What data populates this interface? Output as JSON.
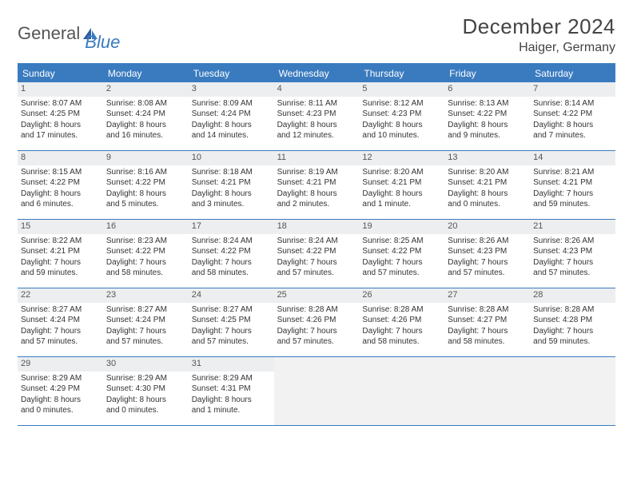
{
  "brand": {
    "part1": "General",
    "part2": "Blue"
  },
  "title": "December 2024",
  "location": "Haiger, Germany",
  "accent_color": "#3a7bbf",
  "daynum_bg": "#eceef0",
  "background": "#ffffff",
  "fontsize_title": 26,
  "fontsize_location": 16,
  "fontsize_dayhead": 12,
  "fontsize_body": 10,
  "weekdays": [
    "Sunday",
    "Monday",
    "Tuesday",
    "Wednesday",
    "Thursday",
    "Friday",
    "Saturday"
  ],
  "days": [
    {
      "n": "1",
      "sunrise": "Sunrise: 8:07 AM",
      "sunset": "Sunset: 4:25 PM",
      "dl1": "Daylight: 8 hours",
      "dl2": "and 17 minutes."
    },
    {
      "n": "2",
      "sunrise": "Sunrise: 8:08 AM",
      "sunset": "Sunset: 4:24 PM",
      "dl1": "Daylight: 8 hours",
      "dl2": "and 16 minutes."
    },
    {
      "n": "3",
      "sunrise": "Sunrise: 8:09 AM",
      "sunset": "Sunset: 4:24 PM",
      "dl1": "Daylight: 8 hours",
      "dl2": "and 14 minutes."
    },
    {
      "n": "4",
      "sunrise": "Sunrise: 8:11 AM",
      "sunset": "Sunset: 4:23 PM",
      "dl1": "Daylight: 8 hours",
      "dl2": "and 12 minutes."
    },
    {
      "n": "5",
      "sunrise": "Sunrise: 8:12 AM",
      "sunset": "Sunset: 4:23 PM",
      "dl1": "Daylight: 8 hours",
      "dl2": "and 10 minutes."
    },
    {
      "n": "6",
      "sunrise": "Sunrise: 8:13 AM",
      "sunset": "Sunset: 4:22 PM",
      "dl1": "Daylight: 8 hours",
      "dl2": "and 9 minutes."
    },
    {
      "n": "7",
      "sunrise": "Sunrise: 8:14 AM",
      "sunset": "Sunset: 4:22 PM",
      "dl1": "Daylight: 8 hours",
      "dl2": "and 7 minutes."
    },
    {
      "n": "8",
      "sunrise": "Sunrise: 8:15 AM",
      "sunset": "Sunset: 4:22 PM",
      "dl1": "Daylight: 8 hours",
      "dl2": "and 6 minutes."
    },
    {
      "n": "9",
      "sunrise": "Sunrise: 8:16 AM",
      "sunset": "Sunset: 4:22 PM",
      "dl1": "Daylight: 8 hours",
      "dl2": "and 5 minutes."
    },
    {
      "n": "10",
      "sunrise": "Sunrise: 8:18 AM",
      "sunset": "Sunset: 4:21 PM",
      "dl1": "Daylight: 8 hours",
      "dl2": "and 3 minutes."
    },
    {
      "n": "11",
      "sunrise": "Sunrise: 8:19 AM",
      "sunset": "Sunset: 4:21 PM",
      "dl1": "Daylight: 8 hours",
      "dl2": "and 2 minutes."
    },
    {
      "n": "12",
      "sunrise": "Sunrise: 8:20 AM",
      "sunset": "Sunset: 4:21 PM",
      "dl1": "Daylight: 8 hours",
      "dl2": "and 1 minute."
    },
    {
      "n": "13",
      "sunrise": "Sunrise: 8:20 AM",
      "sunset": "Sunset: 4:21 PM",
      "dl1": "Daylight: 8 hours",
      "dl2": "and 0 minutes."
    },
    {
      "n": "14",
      "sunrise": "Sunrise: 8:21 AM",
      "sunset": "Sunset: 4:21 PM",
      "dl1": "Daylight: 7 hours",
      "dl2": "and 59 minutes."
    },
    {
      "n": "15",
      "sunrise": "Sunrise: 8:22 AM",
      "sunset": "Sunset: 4:21 PM",
      "dl1": "Daylight: 7 hours",
      "dl2": "and 59 minutes."
    },
    {
      "n": "16",
      "sunrise": "Sunrise: 8:23 AM",
      "sunset": "Sunset: 4:22 PM",
      "dl1": "Daylight: 7 hours",
      "dl2": "and 58 minutes."
    },
    {
      "n": "17",
      "sunrise": "Sunrise: 8:24 AM",
      "sunset": "Sunset: 4:22 PM",
      "dl1": "Daylight: 7 hours",
      "dl2": "and 58 minutes."
    },
    {
      "n": "18",
      "sunrise": "Sunrise: 8:24 AM",
      "sunset": "Sunset: 4:22 PM",
      "dl1": "Daylight: 7 hours",
      "dl2": "and 57 minutes."
    },
    {
      "n": "19",
      "sunrise": "Sunrise: 8:25 AM",
      "sunset": "Sunset: 4:22 PM",
      "dl1": "Daylight: 7 hours",
      "dl2": "and 57 minutes."
    },
    {
      "n": "20",
      "sunrise": "Sunrise: 8:26 AM",
      "sunset": "Sunset: 4:23 PM",
      "dl1": "Daylight: 7 hours",
      "dl2": "and 57 minutes."
    },
    {
      "n": "21",
      "sunrise": "Sunrise: 8:26 AM",
      "sunset": "Sunset: 4:23 PM",
      "dl1": "Daylight: 7 hours",
      "dl2": "and 57 minutes."
    },
    {
      "n": "22",
      "sunrise": "Sunrise: 8:27 AM",
      "sunset": "Sunset: 4:24 PM",
      "dl1": "Daylight: 7 hours",
      "dl2": "and 57 minutes."
    },
    {
      "n": "23",
      "sunrise": "Sunrise: 8:27 AM",
      "sunset": "Sunset: 4:24 PM",
      "dl1": "Daylight: 7 hours",
      "dl2": "and 57 minutes."
    },
    {
      "n": "24",
      "sunrise": "Sunrise: 8:27 AM",
      "sunset": "Sunset: 4:25 PM",
      "dl1": "Daylight: 7 hours",
      "dl2": "and 57 minutes."
    },
    {
      "n": "25",
      "sunrise": "Sunrise: 8:28 AM",
      "sunset": "Sunset: 4:26 PM",
      "dl1": "Daylight: 7 hours",
      "dl2": "and 57 minutes."
    },
    {
      "n": "26",
      "sunrise": "Sunrise: 8:28 AM",
      "sunset": "Sunset: 4:26 PM",
      "dl1": "Daylight: 7 hours",
      "dl2": "and 58 minutes."
    },
    {
      "n": "27",
      "sunrise": "Sunrise: 8:28 AM",
      "sunset": "Sunset: 4:27 PM",
      "dl1": "Daylight: 7 hours",
      "dl2": "and 58 minutes."
    },
    {
      "n": "28",
      "sunrise": "Sunrise: 8:28 AM",
      "sunset": "Sunset: 4:28 PM",
      "dl1": "Daylight: 7 hours",
      "dl2": "and 59 minutes."
    },
    {
      "n": "29",
      "sunrise": "Sunrise: 8:29 AM",
      "sunset": "Sunset: 4:29 PM",
      "dl1": "Daylight: 8 hours",
      "dl2": "and 0 minutes."
    },
    {
      "n": "30",
      "sunrise": "Sunrise: 8:29 AM",
      "sunset": "Sunset: 4:30 PM",
      "dl1": "Daylight: 8 hours",
      "dl2": "and 0 minutes."
    },
    {
      "n": "31",
      "sunrise": "Sunrise: 8:29 AM",
      "sunset": "Sunset: 4:31 PM",
      "dl1": "Daylight: 8 hours",
      "dl2": "and 1 minute."
    }
  ],
  "trailing_empty": 4
}
